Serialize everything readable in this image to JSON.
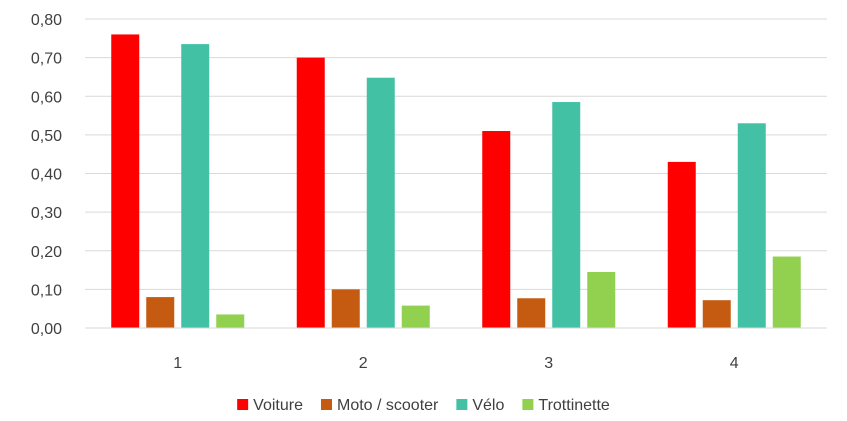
{
  "chart_data": {
    "type": "bar",
    "categories": [
      "1",
      "2",
      "3",
      "4"
    ],
    "series": [
      {
        "name": "Voiture",
        "color": "#ff0000",
        "values": [
          0.76,
          0.7,
          0.51,
          0.43
        ]
      },
      {
        "name": "Moto / scooter",
        "color": "#c55a11",
        "values": [
          0.08,
          0.1,
          0.077,
          0.072
        ]
      },
      {
        "name": "Vélo",
        "color": "#43c1a4",
        "values": [
          0.735,
          0.648,
          0.585,
          0.53
        ]
      },
      {
        "name": "Trottinette",
        "color": "#92d050",
        "values": [
          0.035,
          0.058,
          0.145,
          0.185
        ]
      }
    ],
    "ylim": [
      0,
      0.8
    ],
    "yticks": [
      "0,00",
      "0,10",
      "0,20",
      "0,30",
      "0,40",
      "0,50",
      "0,60",
      "0,70",
      "0,80"
    ],
    "grid": true,
    "legend": "bottom",
    "title": "",
    "xlabel": "",
    "ylabel": ""
  }
}
